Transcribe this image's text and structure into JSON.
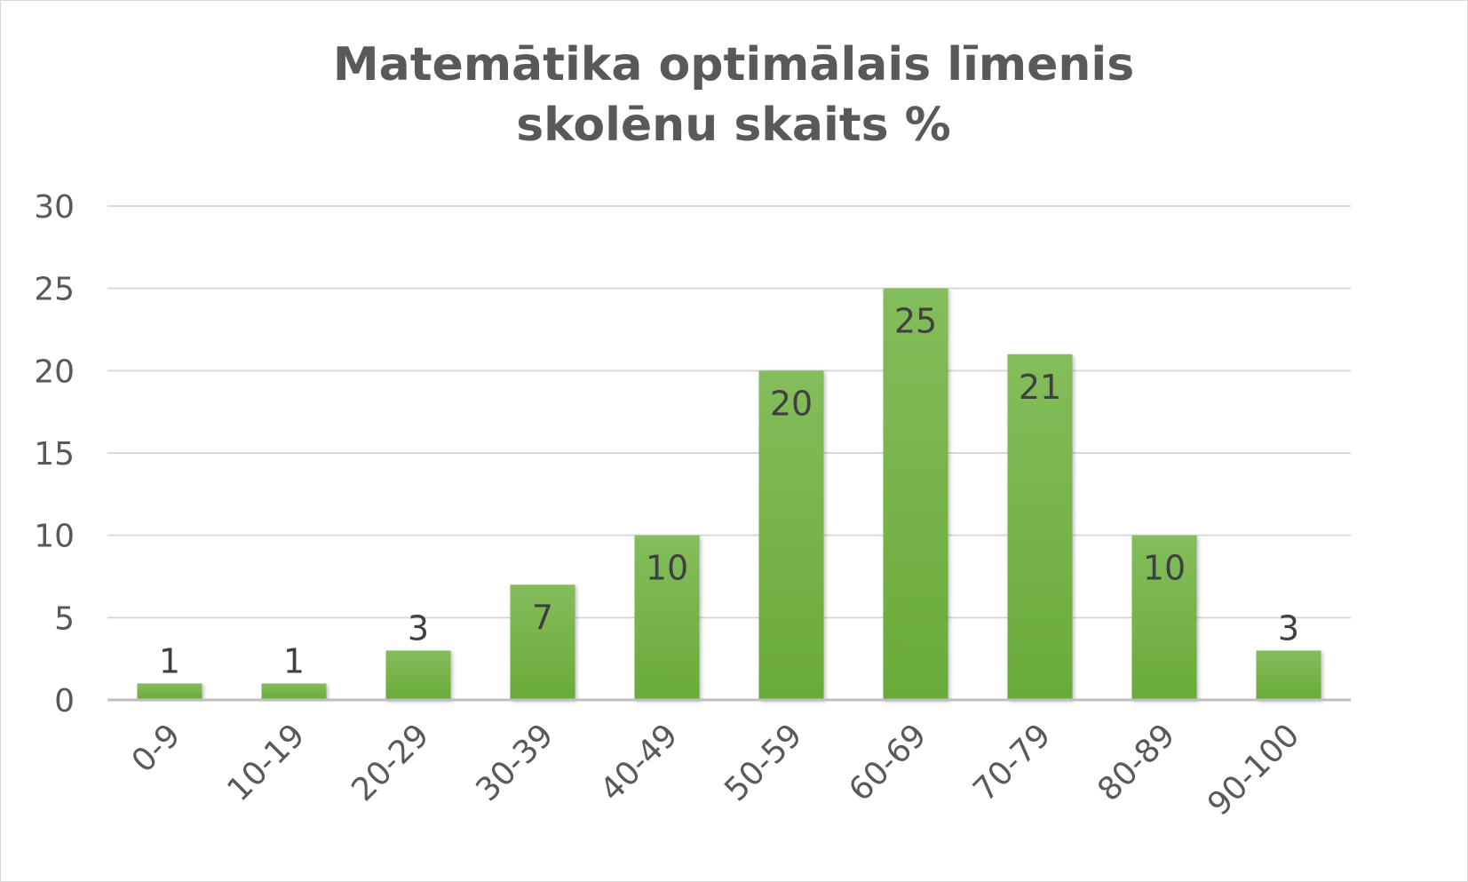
{
  "chart_data": {
    "type": "bar",
    "title_lines": [
      "Matemātika optimālais līmenis",
      "skolēnu skaits %"
    ],
    "categories": [
      "0-9",
      "10-19",
      "20-29",
      "30-39",
      "40-49",
      "50-59",
      "60-69",
      "70-79",
      "80-89",
      "90-100"
    ],
    "values": [
      1,
      1,
      3,
      7,
      10,
      20,
      25,
      21,
      10,
      3
    ],
    "ylim": [
      0,
      30
    ],
    "yticks": [
      0,
      5,
      10,
      15,
      20,
      25,
      30
    ],
    "grid": true,
    "legend": "none",
    "bar_color": "#6aaa3a",
    "bar_color_light": "#84bd5b",
    "data_labels": "inside-end"
  }
}
